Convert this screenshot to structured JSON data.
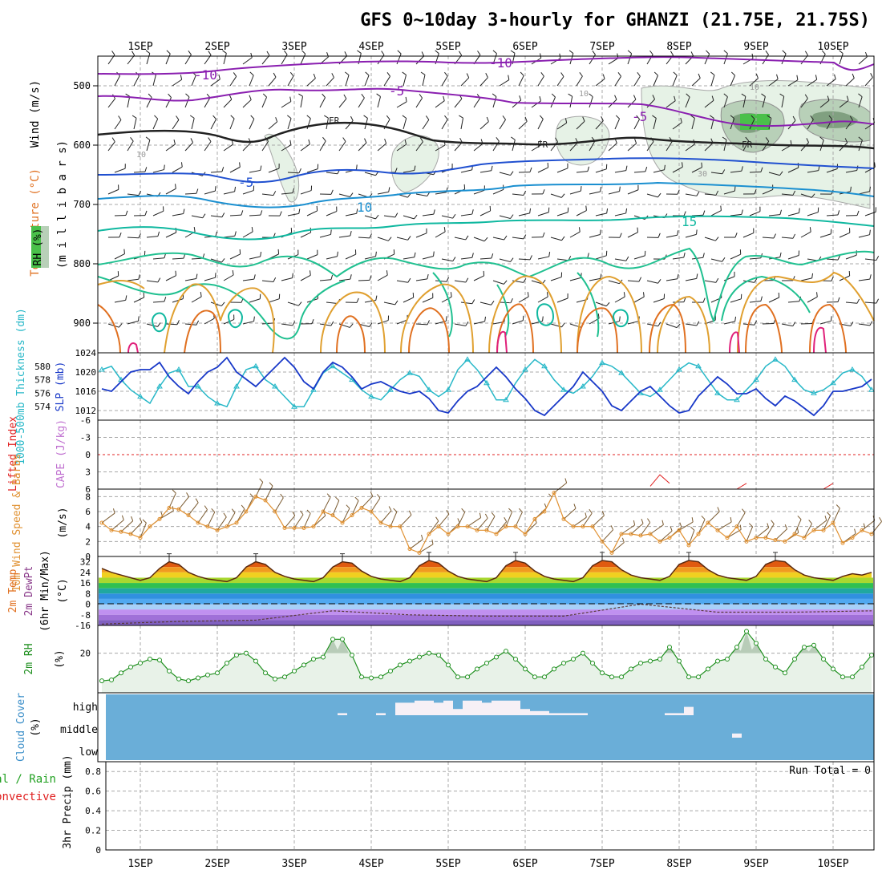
{
  "title": "GFS 0~10day 3-hourly for GHANZI (21.75E, 21.75S)",
  "colors": {
    "frame": "#000000",
    "grid": "#a8a8a8",
    "temp_purple": "#8a1fb0",
    "temp_blue": "#2050d0",
    "temp_lightblue": "#1a8fd0",
    "temp_teal": "#10b8a0",
    "temp_green": "#20c090",
    "temp_orange": "#e0a030",
    "temp_darkorange": "#e07020",
    "temp_magenta": "#e0207a",
    "rh_light": "#e6f2e6",
    "rh_mid": "#b8d0b8",
    "rh_dark": "#80a080",
    "rh_green": "#4ac04a",
    "slp": "#1838c8",
    "thickness": "#28b8c8",
    "li": "#e02020",
    "cape": "#c070d0",
    "wind10": "#e09030",
    "rh2m_line": "#209020",
    "rh2m_fill": "#e8f2e8",
    "cloud_bg": "#6aaed8",
    "cloud_fill": "#f6f0f6",
    "precip_total": "#20a020",
    "precip_conv": "#e02020"
  },
  "x_dates": [
    "1SEP",
    "2SEP",
    "3SEP",
    "4SEP",
    "5SEP",
    "6SEP",
    "7SEP",
    "8SEP",
    "9SEP",
    "10SEP"
  ],
  "panels": {
    "upper": {
      "ylabel_wind": "Wind (m/s)",
      "ylabel_temp": "Temperature (°C)",
      "ylabel_rh": "RH (%)",
      "ylabel_mb": "(m i l l i b a r s)",
      "yticks": [
        "500",
        "600",
        "700",
        "800",
        "900"
      ],
      "contour_labels": [
        "-10",
        "-10",
        "-5",
        "-5",
        "FR",
        "FR",
        "FR",
        "-5",
        "10",
        "15",
        "10",
        "10",
        "10",
        "30"
      ]
    },
    "slp": {
      "ylabel_thk": "1000-500mb Thickness (dm)",
      "ylabel_slp": "SLP (mb)",
      "thk_ticks": [
        "580",
        "578",
        "576",
        "574"
      ],
      "slp_ticks": [
        "1024",
        "1020",
        "1016",
        "1012"
      ]
    },
    "li": {
      "ylabel_li": "Lifted Index",
      "ylabel_cape": "CAPE (J/kg)",
      "ticks": [
        "-6",
        "-3",
        "0",
        "3",
        "6"
      ]
    },
    "wind10": {
      "ylabel": "10m Wind Speed & Barbs",
      "ylabel_unit": "(m/s)",
      "ticks": [
        "8",
        "6",
        "4",
        "2",
        "0"
      ]
    },
    "temp2m": {
      "ylabel_a": "2m Temp",
      "ylabel_b": "2m DewPt",
      "ylabel_c": "(6hr Min/Max)",
      "ylabel_unit": "(°C)",
      "ticks": [
        "32",
        "24",
        "16",
        "8",
        "0",
        "-8",
        "-16"
      ]
    },
    "rh2m": {
      "ylabel": "2m RH",
      "ylabel_unit": "(%)",
      "ticks": [
        "20"
      ]
    },
    "cloud": {
      "ylabel": "Cloud Cover",
      "ylabel_unit": "(%)",
      "levels": [
        "high",
        "middle",
        "low"
      ]
    },
    "precip": {
      "ylabel_total": "tal / Rain",
      "ylabel_conv": "Convective",
      "ylabel_main": "3hr Precip (mm)",
      "ticks": [
        "0.8",
        "0.6",
        "0.4",
        "0.2",
        "0"
      ],
      "run_total": "Run Total = 0"
    }
  },
  "chart_data": [
    {
      "type": "line",
      "panel": "slp",
      "name": "SLP (mb)",
      "x_unit": "3-hour step from 31 Aug 12Z",
      "x": [
        0,
        1,
        2,
        3,
        4,
        5,
        6,
        7,
        8,
        9,
        10,
        11,
        12,
        13,
        14,
        15,
        16,
        17,
        18,
        19,
        20,
        21,
        22,
        23,
        24,
        25,
        26,
        27,
        28,
        29,
        30,
        31,
        32,
        33,
        34,
        35,
        36,
        37,
        38,
        39,
        40,
        41,
        42,
        43,
        44,
        45,
        46,
        47,
        48,
        49,
        50,
        51,
        52,
        53,
        54,
        55,
        56,
        57,
        58,
        59,
        60,
        61,
        62,
        63,
        64,
        65,
        66,
        67,
        68,
        69,
        70,
        71,
        72,
        73,
        74,
        75,
        76,
        77,
        78,
        79,
        80
      ],
      "values": [
        1016.5,
        1016,
        1018,
        1020,
        1020.5,
        1020.5,
        1022,
        1019,
        1017,
        1015.5,
        1018,
        1020,
        1021,
        1023,
        1020,
        1018.5,
        1017,
        1019,
        1021,
        1023,
        1021,
        1018,
        1016.5,
        1020,
        1022,
        1021,
        1019,
        1016.5,
        1017.5,
        1018,
        1017,
        1016,
        1015.5,
        1016,
        1014.5,
        1012,
        1011.5,
        1014,
        1016,
        1017,
        1019,
        1021,
        1019,
        1016.5,
        1014.5,
        1012,
        1011,
        1013,
        1015,
        1017,
        1020,
        1018,
        1016,
        1013,
        1012,
        1014,
        1016,
        1017,
        1015,
        1013,
        1011.5,
        1012,
        1015,
        1017,
        1019,
        1017.5,
        1015.5,
        1015.5,
        1016.5,
        1014.5,
        1013,
        1015,
        1014,
        1012.5,
        1011,
        1013,
        1016,
        1016,
        1016.5,
        1017,
        1018.5
      ],
      "ylim": [
        1010,
        1024
      ]
    },
    {
      "type": "line",
      "panel": "slp",
      "name": "1000-500mb Thickness (dm)",
      "x": [
        0,
        1,
        2,
        3,
        4,
        5,
        6,
        7,
        8,
        9,
        10,
        11,
        12,
        13,
        14,
        15,
        16,
        17,
        18,
        19,
        20,
        21,
        22,
        23,
        24,
        25,
        26,
        27,
        28,
        29,
        30,
        31,
        32,
        33,
        34,
        35,
        36,
        37,
        38,
        39,
        40,
        41,
        42,
        43,
        44,
        45,
        46,
        47,
        48,
        49,
        50,
        51,
        52,
        53,
        54,
        55,
        56,
        57,
        58,
        59,
        60,
        61,
        62,
        63,
        64,
        65,
        66,
        67,
        68,
        69,
        70,
        71,
        72,
        73,
        74,
        75,
        76,
        77,
        78,
        79,
        80
      ],
      "values": [
        579.5,
        580,
        578,
        576.5,
        575.5,
        574.5,
        577,
        579,
        579.5,
        577,
        577,
        575.5,
        574.5,
        574,
        577,
        579.5,
        580,
        578,
        577,
        575.5,
        574,
        574,
        576.5,
        579,
        580,
        579,
        578,
        576.5,
        575.5,
        575,
        576.5,
        578,
        579,
        578.5,
        576.5,
        575.5,
        576.5,
        579.5,
        581,
        579.5,
        577.5,
        575,
        575,
        577.5,
        579.5,
        581,
        580,
        578,
        576.5,
        576,
        577,
        578.5,
        580.5,
        580,
        579,
        577.5,
        576,
        575.5,
        576.5,
        578,
        579.5,
        580.5,
        580,
        578,
        576,
        575,
        575,
        576.5,
        578,
        580,
        581,
        580,
        578,
        576.5,
        576,
        576.5,
        577.5,
        579,
        579.5,
        578.5,
        576.5
      ],
      "ylim": [
        572,
        582
      ]
    },
    {
      "type": "line",
      "panel": "wind10",
      "name": "10m Wind Speed (m/s)",
      "x": [
        0,
        1,
        2,
        3,
        4,
        5,
        6,
        7,
        8,
        9,
        10,
        11,
        12,
        13,
        14,
        15,
        16,
        17,
        18,
        19,
        20,
        21,
        22,
        23,
        24,
        25,
        26,
        27,
        28,
        29,
        30,
        31,
        32,
        33,
        34,
        35,
        36,
        37,
        38,
        39,
        40,
        41,
        42,
        43,
        44,
        45,
        46,
        47,
        48,
        49,
        50,
        51,
        52,
        53,
        54,
        55,
        56,
        57,
        58,
        59,
        60,
        61,
        62,
        63,
        64,
        65,
        66,
        67,
        68,
        69,
        70,
        71,
        72,
        73,
        74,
        75,
        76,
        77,
        78,
        79,
        80
      ],
      "values": [
        4.5,
        3.5,
        3.3,
        3,
        2.5,
        4,
        5,
        6.5,
        6.3,
        5.5,
        4.5,
        4,
        3.5,
        4,
        4.5,
        6,
        8,
        7.5,
        6,
        3.8,
        3.8,
        3.8,
        4,
        6,
        5.5,
        4.5,
        5.5,
        6.5,
        6,
        4.5,
        4,
        4,
        1,
        0.5,
        3,
        4,
        3,
        4,
        4,
        3.5,
        3.5,
        3,
        4,
        4,
        3,
        5,
        6,
        8.5,
        5,
        4,
        4,
        4,
        2,
        0.5,
        3,
        3,
        2.8,
        3,
        2,
        2.5,
        3.5,
        1.5,
        3,
        4.5,
        3.5,
        2.5,
        4,
        2,
        2.5,
        2.5,
        2.2,
        2,
        3,
        2.5,
        3.5,
        3.5,
        4.5,
        1.8,
        2.5,
        3.5,
        3
      ]
    },
    {
      "type": "line",
      "panel": "li",
      "name": "Lifted Index",
      "x": [
        57,
        58,
        59,
        66,
        67,
        75,
        76
      ],
      "values": [
        5.5,
        3.5,
        5,
        6,
        5,
        6,
        5
      ],
      "ylim": [
        -6,
        6
      ]
    },
    {
      "type": "area",
      "panel": "temp2m",
      "name": "2m Temp (°C)",
      "x_unit": "3-hour step from 31 Aug 12Z",
      "x": [
        0,
        1,
        2,
        3,
        4,
        5,
        6,
        7,
        8,
        9,
        10,
        11,
        12,
        13,
        14,
        15,
        16,
        17,
        18,
        19,
        20,
        21,
        22,
        23,
        24,
        25,
        26,
        27,
        28,
        29,
        30,
        31,
        32,
        33,
        34,
        35,
        36,
        37,
        38,
        39,
        40,
        41,
        42,
        43,
        44,
        45,
        46,
        47,
        48,
        49,
        50,
        51,
        52,
        53,
        54,
        55,
        56,
        57,
        58,
        59,
        60,
        61,
        62,
        63,
        64,
        65,
        66,
        67,
        68,
        69,
        70,
        71,
        72,
        73,
        74,
        75,
        76,
        77,
        78,
        79,
        80
      ],
      "values": [
        27,
        24,
        22,
        20,
        18,
        20,
        27,
        32,
        30,
        24,
        21,
        19,
        18,
        17,
        20,
        28,
        32,
        30,
        24,
        21,
        19,
        18,
        17,
        20,
        28,
        32,
        31,
        25,
        21,
        19,
        18,
        17,
        20,
        29,
        33,
        31,
        25,
        21,
        19,
        18,
        17,
        20,
        29,
        33,
        31,
        25,
        21,
        19,
        18,
        17,
        20,
        29,
        33,
        32,
        26,
        22,
        20,
        19,
        18,
        21,
        30,
        33,
        32,
        26,
        22,
        20,
        19,
        18,
        21,
        30,
        33,
        32,
        26,
        22,
        20,
        19,
        18,
        21,
        23,
        22,
        24
      ],
      "ylim": [
        -16,
        36
      ]
    },
    {
      "type": "line",
      "panel": "temp2m",
      "name": "2m DewPt (°C)",
      "x": [
        0,
        8,
        16,
        24,
        32,
        40,
        48,
        56,
        64,
        72,
        80
      ],
      "values": [
        -15,
        -13,
        -12,
        -5,
        -8,
        -9,
        -9,
        0,
        -6,
        -6,
        -5
      ]
    },
    {
      "type": "area",
      "panel": "rh2m",
      "name": "2m RH (%)",
      "x": [
        0,
        1,
        2,
        3,
        4,
        5,
        6,
        7,
        8,
        9,
        10,
        11,
        12,
        13,
        14,
        15,
        16,
        17,
        18,
        19,
        20,
        21,
        22,
        23,
        24,
        25,
        26,
        27,
        28,
        29,
        30,
        31,
        32,
        33,
        34,
        35,
        36,
        37,
        38,
        39,
        40,
        41,
        42,
        43,
        44,
        45,
        46,
        47,
        48,
        49,
        50,
        51,
        52,
        53,
        54,
        55,
        56,
        57,
        58,
        59,
        60,
        61,
        62,
        63,
        64,
        65,
        66,
        67,
        68,
        69,
        70,
        71,
        72,
        73,
        74,
        75,
        76,
        77,
        78,
        79,
        80
      ],
      "values": [
        6,
        6.5,
        10,
        13,
        15,
        17,
        16.5,
        11,
        7,
        6,
        7.5,
        9,
        10,
        15,
        19,
        20,
        16,
        10,
        7,
        8,
        11,
        14,
        17,
        18,
        27,
        27,
        19,
        8,
        7.5,
        8,
        11,
        14,
        16,
        18,
        20,
        19,
        14,
        8,
        8,
        12,
        15,
        18,
        21,
        17,
        12,
        8,
        8,
        12,
        15,
        17,
        20,
        15,
        10,
        8,
        8,
        12,
        15,
        16,
        17,
        23,
        16,
        8,
        8,
        12,
        16,
        17,
        23,
        31,
        25,
        17,
        13,
        10,
        17,
        23,
        24,
        17,
        12,
        8,
        8,
        13,
        19
      ]
    },
    {
      "type": "bar",
      "panel": "cloud",
      "name": "High cloud cover",
      "x": [
        25,
        29,
        31,
        32,
        33,
        34,
        35,
        36,
        37,
        38,
        39,
        40,
        41,
        42,
        43,
        44,
        45,
        46,
        47,
        48,
        49,
        50,
        59,
        60,
        61
      ],
      "values": [
        10,
        10,
        60,
        60,
        70,
        70,
        60,
        70,
        30,
        70,
        70,
        60,
        70,
        70,
        70,
        30,
        20,
        20,
        10,
        10,
        10,
        10,
        10,
        10,
        40
      ]
    },
    {
      "type": "bar",
      "panel": "cloud",
      "name": "Middle cloud cover",
      "x": [
        66
      ],
      "values": [
        20
      ]
    },
    {
      "type": "bar",
      "panel": "precip",
      "name": "3hr Precip (mm)",
      "x": [],
      "values": [],
      "ylim": [
        0,
        0.9
      ]
    }
  ]
}
